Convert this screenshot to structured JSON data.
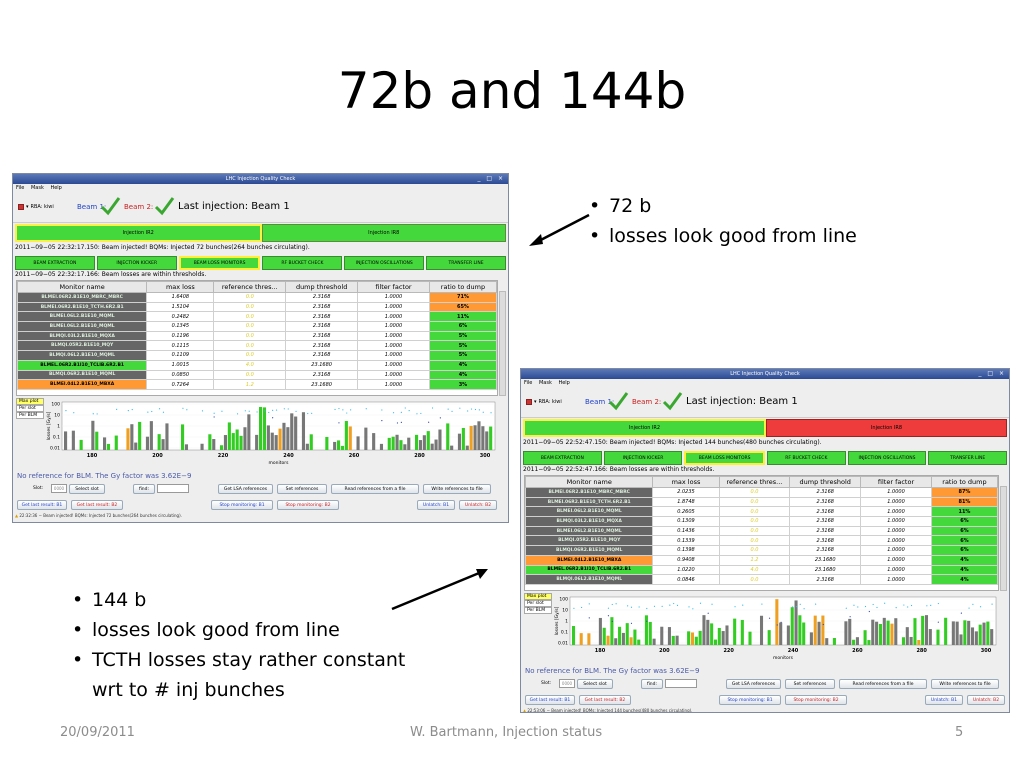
{
  "slide": {
    "title": "72b and 144b",
    "bullets_72": [
      "72 b",
      "losses look good from line"
    ],
    "bullets_144": [
      "144 b",
      "losses look good from line",
      "TCTH losses stay rather constant wrt to # inj bunches"
    ],
    "footer_date": "20/09/2011",
    "footer_center": "W. Bartmann, Injection status",
    "footer_page": "5"
  },
  "app": {
    "window_title": "LHC Injection Quality Check",
    "window_controls": "_ □ ×",
    "menu": [
      "File",
      "Mask",
      "Help"
    ],
    "rba_label": "RBA: kiwi",
    "beam1_label": "Beam 1:",
    "beam2_label": "Beam 2:",
    "last_injection": "Last injection: Beam 1",
    "ir_buttons": [
      "Injection IR2",
      "Injection IR8"
    ],
    "tabs": [
      "BEAM EXTRACTION",
      "INJECTION KICKER",
      "BEAM LOSS MONITORS",
      "RF BUCKET CHECK",
      "INJECTION OSCILLATIONS",
      "TRANSFER LINE"
    ],
    "columns": [
      "Monitor name",
      "max loss",
      "reference thres...",
      "dump threshold",
      "filter factor",
      "ratio to dump"
    ],
    "plot_modes": [
      "Max plot",
      "Per slot",
      "Per BLM"
    ],
    "x_axis_label": "monitors",
    "y_axis_label": "losses [Gy/s]",
    "y_ticks": [
      "100",
      "10",
      "1",
      "0.1",
      "0.01"
    ],
    "x_ticks": [
      "180",
      "200",
      "220",
      "240",
      "260",
      "280",
      "300"
    ],
    "no_reference": "No reference for BLM. The Gy factor was 3.62E−9",
    "slot_label": "Slot:",
    "slot_value": "0000",
    "select_slot": "Select slot",
    "find_label": "find:",
    "get_lsa": "Get LSA references",
    "set_refs": "Set references",
    "read_refs": "Read references from a file",
    "write_refs": "Write references to file",
    "get_last_b1": "Get last result: B1",
    "get_last_b2": "Get last result: B2",
    "stop_b1": "Stop monitoring: B1",
    "stop_b2": "Stop monitoring: B2",
    "unlatch_b1": "Unlatch: B1",
    "unlatch_b2": "Unlatch: B2",
    "colors": {
      "green": "#44d83c",
      "red": "#ee3c3c",
      "orange": "#ff9933",
      "dark_gray": "#666666"
    }
  },
  "screen_72": {
    "status_injected": "2011−09−05 22:32:17.150: Beam injected! BQMs: Injected 72 bunches(264 bunches circulating).",
    "status_losses": "2011−09−05 22:32:17.166: Beam losses are within thresholds.",
    "ir8_state": "green",
    "bottom_status": "22:32:36 − Beam injected! BQMs: Injected 72 bunches(264 bunches circulating).",
    "rows": [
      {
        "name": "BLMEI.06R2.B1E10_MBRC_MBRC",
        "max": "1.6408",
        "ref": "0.0",
        "dump": "2.3168",
        "filter": "1.0000",
        "ratio": "71%",
        "rcolor": "orange",
        "ncolor": "gray"
      },
      {
        "name": "BLMEI.06R2.B1E10_TCTH.6R2.B1",
        "max": "1.5104",
        "ref": "0.0",
        "dump": "2.3168",
        "filter": "1.0000",
        "ratio": "65%",
        "rcolor": "orange",
        "ncolor": "gray"
      },
      {
        "name": "BLMEI.06L2.B1E10_MQML",
        "max": "0.2482",
        "ref": "0.0",
        "dump": "2.3168",
        "filter": "1.0000",
        "ratio": "11%",
        "rcolor": "green",
        "ncolor": "gray"
      },
      {
        "name": "BLMEI.06L2.B1E10_MQML",
        "max": "0.1345",
        "ref": "0.0",
        "dump": "2.3168",
        "filter": "1.0000",
        "ratio": "6%",
        "rcolor": "green",
        "ncolor": "gray"
      },
      {
        "name": "BLMQI.03L2.B1E10_MQXA",
        "max": "0.1196",
        "ref": "0.0",
        "dump": "2.3168",
        "filter": "1.0000",
        "ratio": "5%",
        "rcolor": "green",
        "ncolor": "gray"
      },
      {
        "name": "BLMQI.05R2.B1E10_MQY",
        "max": "0.1115",
        "ref": "0.0",
        "dump": "2.3168",
        "filter": "1.0000",
        "ratio": "5%",
        "rcolor": "green",
        "ncolor": "gray"
      },
      {
        "name": "BLMQI.06L2.B1E10_MQML",
        "max": "0.1109",
        "ref": "0.0",
        "dump": "2.3168",
        "filter": "1.0000",
        "ratio": "5%",
        "rcolor": "green",
        "ncolor": "gray"
      },
      {
        "name": "BLMEL.06R2.B1I10_TCLIB.6R2.B1",
        "max": "1.0015",
        "ref": "4.0",
        "dump": "23.1680",
        "filter": "1.0000",
        "ratio": "4%",
        "rcolor": "green",
        "ncolor": "green"
      },
      {
        "name": "BLMQI.06R2.B1E10_MQML",
        "max": "0.0850",
        "ref": "0.0",
        "dump": "2.3168",
        "filter": "1.0000",
        "ratio": "4%",
        "rcolor": "green",
        "ncolor": "gray"
      },
      {
        "name": "BLMEI.04L2.B1E10_MBXA",
        "max": "0.7264",
        "ref": "1.2",
        "dump": "23.1680",
        "filter": "1.0000",
        "ratio": "3%",
        "rcolor": "green",
        "ncolor": "orange"
      }
    ]
  },
  "screen_144": {
    "status_injected": "2011−09−05 22:52:47.150: Beam injected! BQMs: Injected 144 bunches(480 bunches circulating).",
    "status_losses": "2011−09−05 22:52:47.166: Beam losses are within thresholds.",
    "ir8_state": "red",
    "bottom_status": "22:53:06 − Beam injected! BQMs: Injected 144 bunches(480 bunches circulating).",
    "rows": [
      {
        "name": "BLMEI.06R2.B1E10_MBRC_MBRC",
        "max": "2.0235",
        "ref": "0.0",
        "dump": "2.3168",
        "filter": "1.0000",
        "ratio": "87%",
        "rcolor": "orange",
        "ncolor": "gray"
      },
      {
        "name": "BLMEI.06R2.B1E10_TCTH.6R2.B1",
        "max": "1.8748",
        "ref": "0.0",
        "dump": "2.3168",
        "filter": "1.0000",
        "ratio": "81%",
        "rcolor": "orange",
        "ncolor": "gray"
      },
      {
        "name": "BLMEI.06L2.B1E10_MQML",
        "max": "0.2605",
        "ref": "0.0",
        "dump": "2.3168",
        "filter": "1.0000",
        "ratio": "11%",
        "rcolor": "green",
        "ncolor": "gray"
      },
      {
        "name": "BLMQI.03L2.B1E10_MQXA",
        "max": "0.1309",
        "ref": "0.0",
        "dump": "2.3168",
        "filter": "1.0000",
        "ratio": "6%",
        "rcolor": "green",
        "ncolor": "gray"
      },
      {
        "name": "BLMEI.06L2.B1E10_MQML",
        "max": "0.1436",
        "ref": "0.0",
        "dump": "2.3168",
        "filter": "1.0000",
        "ratio": "6%",
        "rcolor": "green",
        "ncolor": "gray"
      },
      {
        "name": "BLMQI.05R2.B1E10_MQY",
        "max": "0.1339",
        "ref": "0.0",
        "dump": "2.3168",
        "filter": "1.0000",
        "ratio": "6%",
        "rcolor": "green",
        "ncolor": "gray"
      },
      {
        "name": "BLMQI.06R2.B1E10_MQML",
        "max": "0.1398",
        "ref": "0.0",
        "dump": "2.3168",
        "filter": "1.0000",
        "ratio": "6%",
        "rcolor": "green",
        "ncolor": "gray"
      },
      {
        "name": "BLMEI.04L2.B1E10_MBXA",
        "max": "0.9408",
        "ref": "1.2",
        "dump": "23.1680",
        "filter": "1.0000",
        "ratio": "4%",
        "rcolor": "green",
        "ncolor": "orange"
      },
      {
        "name": "BLMEL.06R2.B1I10_TCLIB.6R2.B1",
        "max": "1.0220",
        "ref": "4.0",
        "dump": "23.1680",
        "filter": "1.0000",
        "ratio": "4%",
        "rcolor": "green",
        "ncolor": "green"
      },
      {
        "name": "BLMQI.06L2.B1E10_MQML",
        "max": "0.0846",
        "ref": "0.0",
        "dump": "2.3168",
        "filter": "1.0000",
        "ratio": "4%",
        "rcolor": "green",
        "ncolor": "gray"
      }
    ]
  }
}
